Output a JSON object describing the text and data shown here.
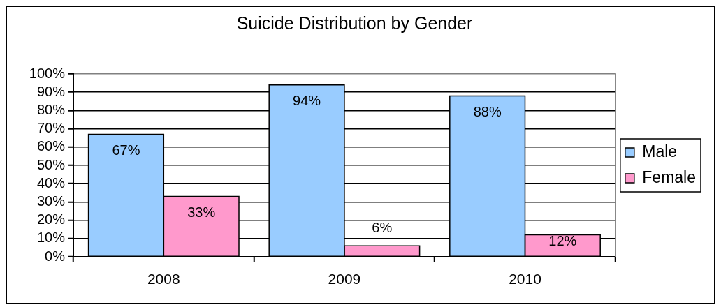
{
  "chart_data": {
    "type": "bar",
    "title": "Suicide Distribution by Gender",
    "categories": [
      "2008",
      "2009",
      "2010"
    ],
    "series": [
      {
        "name": "Male",
        "color": "#99ccff",
        "values": [
          67,
          94,
          88
        ],
        "value_labels": [
          "67%",
          "94%",
          "88%"
        ]
      },
      {
        "name": "Female",
        "color": "#ff99cc",
        "values": [
          33,
          6,
          12
        ],
        "value_labels": [
          "33%",
          "6%",
          "12%"
        ]
      }
    ],
    "ylim": [
      0,
      100
    ],
    "yticks": [
      {
        "value": 0,
        "label": "0%"
      },
      {
        "value": 10,
        "label": "10%"
      },
      {
        "value": 20,
        "label": "20%"
      },
      {
        "value": 30,
        "label": "30%"
      },
      {
        "value": 40,
        "label": "40%"
      },
      {
        "value": 50,
        "label": "50%"
      },
      {
        "value": 60,
        "label": "60%"
      },
      {
        "value": 70,
        "label": "70%"
      },
      {
        "value": 80,
        "label": "80%"
      },
      {
        "value": 90,
        "label": "90%"
      },
      {
        "value": 100,
        "label": "100%"
      }
    ],
    "grid": "y",
    "legend": "right"
  }
}
